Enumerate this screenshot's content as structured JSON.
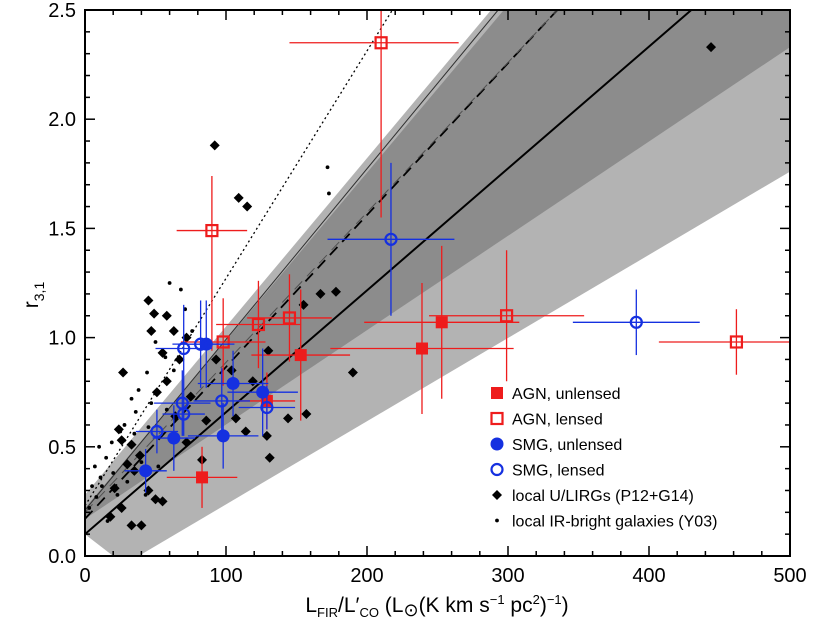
{
  "chart_data": {
    "type": "scatter",
    "title": "",
    "xlabel": {
      "main": "L",
      "sub1": "FIR",
      "mid": "/L′",
      "sub2": "CO",
      "tail1": " (L",
      "tail2": "(K km s",
      "sup1": "−1",
      "tail3": " pc",
      "sup2": "2",
      "tail4": ")",
      "sup3": "−1",
      "tail5": ")"
    },
    "ylabel": {
      "main": "r",
      "sub": "3,1"
    },
    "xlim": [
      0,
      500
    ],
    "ylim": [
      0,
      2.5
    ],
    "xticks": [
      0,
      100,
      200,
      300,
      400,
      500
    ],
    "yticks": [
      0.0,
      0.5,
      1.0,
      1.5,
      2.0,
      2.5
    ],
    "xtick_labels": [
      "0",
      "100",
      "200",
      "300",
      "400",
      "500"
    ],
    "ytick_labels": [
      "0.0",
      "0.5",
      "1.0",
      "1.5",
      "2.0",
      "2.5"
    ],
    "colors": {
      "agn": "#ee1c1c",
      "smg": "#1530e0",
      "local": "#000000",
      "band_light": "#b3b3b3",
      "band_dark": "#8c8c8c"
    },
    "bands": [
      {
        "name": "outer-band",
        "color": "#b3b3b3",
        "polygon": [
          [
            20,
            0
          ],
          [
            38,
            0
          ],
          [
            500,
            1.76
          ],
          [
            500,
            2.5
          ],
          [
            288,
            2.5
          ],
          [
            0,
            0.28
          ],
          [
            0,
            0.1
          ]
        ]
      },
      {
        "name": "inner-band",
        "color": "#8c8c8c",
        "polygon": [
          [
            0,
            0.17
          ],
          [
            0,
            0.22
          ],
          [
            297,
            2.5
          ],
          [
            500,
            2.5
          ],
          [
            500,
            2.33
          ]
        ]
      }
    ],
    "lines": [
      {
        "name": "fit-solid",
        "style": "solid",
        "width": 2,
        "color": "#000000",
        "points": [
          [
            0,
            0.1
          ],
          [
            430,
            2.5
          ]
        ]
      },
      {
        "name": "fit-dashed",
        "style": "dashed",
        "width": 1.8,
        "color": "#000000",
        "points": [
          [
            0,
            0.17
          ],
          [
            335,
            2.5
          ]
        ]
      },
      {
        "name": "fit-thin-solid",
        "style": "solid",
        "width": 1,
        "color": "#303030",
        "points": [
          [
            0,
            0.21
          ],
          [
            293,
            2.5
          ]
        ]
      },
      {
        "name": "fit-thin-dashed",
        "style": "dashed",
        "width": 1,
        "color": "#505050",
        "points": [
          [
            0,
            0.2
          ],
          [
            335,
            2.5
          ]
        ]
      },
      {
        "name": "fit-dotted",
        "style": "dotted",
        "width": 1.3,
        "color": "#000000",
        "points": [
          [
            0,
            0.23
          ],
          [
            218,
            2.5
          ]
        ]
      }
    ],
    "series": [
      {
        "name": "AGN, unlensed",
        "marker": "square-filled",
        "color": "#ee1c1c",
        "points": [
          {
            "x": 83,
            "y": 0.36,
            "xerr": [
              25,
              25
            ],
            "yerr": [
              0.14,
              0.14
            ]
          },
          {
            "x": 129,
            "y": 0.71,
            "xerr": [
              20,
              20
            ],
            "yerr": [
              0.13,
              0.13
            ]
          },
          {
            "x": 153,
            "y": 0.92,
            "xerr": [
              35,
              35
            ],
            "yerr": [
              0.3,
              0.3
            ]
          },
          {
            "x": 239,
            "y": 0.95,
            "xerr": [
              65,
              65
            ],
            "yerr": [
              0.3,
              0.3
            ]
          },
          {
            "x": 253,
            "y": 1.07,
            "xerr": [
              55,
              55
            ],
            "yerr": [
              0.35,
              0.35
            ]
          }
        ]
      },
      {
        "name": "AGN, lensed",
        "marker": "square-open",
        "color": "#ee1c1c",
        "points": [
          {
            "x": 210,
            "y": 2.35,
            "xerr": [
              65,
              55
            ],
            "yerr": [
              0.8,
              0.15
            ]
          },
          {
            "x": 90,
            "y": 1.49,
            "xerr": [
              25,
              25
            ],
            "yerr": [
              0.55,
              0.25
            ]
          },
          {
            "x": 98,
            "y": 0.98,
            "xerr": [
              30,
              30
            ],
            "yerr": [
              0.2,
              0.2
            ]
          },
          {
            "x": 123,
            "y": 1.06,
            "xerr": [
              30,
              30
            ],
            "yerr": [
              0.2,
              0.2
            ]
          },
          {
            "x": 145,
            "y": 1.09,
            "xerr": [
              30,
              30
            ],
            "yerr": [
              0.2,
              0.2
            ]
          },
          {
            "x": 299,
            "y": 1.1,
            "xerr": [
              55,
              55
            ],
            "yerr": [
              0.3,
              0.3
            ]
          },
          {
            "x": 462,
            "y": 0.98,
            "xerr": [
              55,
              55
            ],
            "yerr": [
              0.15,
              0.15
            ]
          }
        ]
      },
      {
        "name": "SMG, unlensed",
        "marker": "circle-filled",
        "color": "#1530e0",
        "points": [
          {
            "x": 43,
            "y": 0.39,
            "xerr": [
              15,
              15
            ],
            "yerr": [
              0.1,
              0.1
            ]
          },
          {
            "x": 63,
            "y": 0.54,
            "xerr": [
              15,
              15
            ],
            "yerr": [
              0.15,
              0.15
            ]
          },
          {
            "x": 98,
            "y": 0.55,
            "xerr": [
              25,
              25
            ],
            "yerr": [
              0.15,
              0.15
            ]
          },
          {
            "x": 105,
            "y": 0.79,
            "xerr": [
              25,
              25
            ],
            "yerr": [
              0.15,
              0.15
            ]
          },
          {
            "x": 126,
            "y": 0.75,
            "xerr": [
              25,
              25
            ],
            "yerr": [
              0.2,
              0.2
            ]
          },
          {
            "x": 86,
            "y": 0.97,
            "xerr": [
              20,
              20
            ],
            "yerr": [
              0.2,
              0.2
            ]
          }
        ]
      },
      {
        "name": "SMG, lensed",
        "marker": "circle-open",
        "color": "#1530e0",
        "points": [
          {
            "x": 217,
            "y": 1.45,
            "xerr": [
              45,
              45
            ],
            "yerr": [
              0.35,
              0.35
            ]
          },
          {
            "x": 391,
            "y": 1.07,
            "xerr": [
              45,
              45
            ],
            "yerr": [
              0.15,
              0.15
            ]
          },
          {
            "x": 70,
            "y": 0.95,
            "xerr": [
              20,
              20
            ],
            "yerr": [
              0.2,
              0.2
            ]
          },
          {
            "x": 82,
            "y": 0.97,
            "xerr": [
              20,
              20
            ],
            "yerr": [
              0.2,
              0.2
            ]
          },
          {
            "x": 69,
            "y": 0.7,
            "xerr": [
              20,
              20
            ],
            "yerr": [
              0.15,
              0.15
            ]
          },
          {
            "x": 97,
            "y": 0.71,
            "xerr": [
              20,
              20
            ],
            "yerr": [
              0.15,
              0.15
            ]
          },
          {
            "x": 129,
            "y": 0.68,
            "xerr": [
              20,
              20
            ],
            "yerr": [
              0.1,
              0.1
            ]
          },
          {
            "x": 51,
            "y": 0.57,
            "xerr": [
              15,
              15
            ],
            "yerr": [
              0.1,
              0.1
            ]
          },
          {
            "x": 70,
            "y": 0.65,
            "xerr": [
              15,
              15
            ],
            "yerr": [
              0.1,
              0.1
            ]
          }
        ]
      },
      {
        "name": "local U/LIRGs (P12+G14)",
        "marker": "diamond-filled",
        "color": "#000000",
        "points": [
          {
            "x": 444,
            "y": 2.33
          },
          {
            "x": 92,
            "y": 1.88
          },
          {
            "x": 109,
            "y": 1.64
          },
          {
            "x": 115,
            "y": 1.6
          },
          {
            "x": 45,
            "y": 1.17
          },
          {
            "x": 49,
            "y": 1.11
          },
          {
            "x": 58,
            "y": 1.1
          },
          {
            "x": 47,
            "y": 1.03
          },
          {
            "x": 63,
            "y": 1.03
          },
          {
            "x": 72,
            "y": 1.0
          },
          {
            "x": 55,
            "y": 0.93
          },
          {
            "x": 67,
            "y": 0.9
          },
          {
            "x": 27,
            "y": 0.84
          },
          {
            "x": 58,
            "y": 0.8
          },
          {
            "x": 104,
            "y": 0.85
          },
          {
            "x": 130,
            "y": 0.94
          },
          {
            "x": 155,
            "y": 1.15
          },
          {
            "x": 167,
            "y": 1.2
          },
          {
            "x": 178,
            "y": 1.21
          },
          {
            "x": 190,
            "y": 0.84
          },
          {
            "x": 51,
            "y": 0.75
          },
          {
            "x": 75,
            "y": 0.73
          },
          {
            "x": 119,
            "y": 0.8
          },
          {
            "x": 157,
            "y": 0.65
          },
          {
            "x": 129,
            "y": 0.55
          },
          {
            "x": 131,
            "y": 0.45
          },
          {
            "x": 24,
            "y": 0.58
          },
          {
            "x": 26,
            "y": 0.53
          },
          {
            "x": 33,
            "y": 0.51
          },
          {
            "x": 39,
            "y": 0.46
          },
          {
            "x": 30,
            "y": 0.42
          },
          {
            "x": 35,
            "y": 0.39
          },
          {
            "x": 45,
            "y": 0.3
          },
          {
            "x": 50,
            "y": 0.26
          },
          {
            "x": 55,
            "y": 0.25
          },
          {
            "x": 21,
            "y": 0.31
          },
          {
            "x": 26,
            "y": 0.22
          },
          {
            "x": 18,
            "y": 0.18
          },
          {
            "x": 40,
            "y": 0.14
          },
          {
            "x": 33,
            "y": 0.14
          },
          {
            "x": 64,
            "y": 0.64
          },
          {
            "x": 86,
            "y": 0.62
          },
          {
            "x": 93,
            "y": 0.9
          },
          {
            "x": 114,
            "y": 0.57
          },
          {
            "x": 72,
            "y": 0.52
          },
          {
            "x": 144,
            "y": 0.63
          },
          {
            "x": 107,
            "y": 0.63
          },
          {
            "x": 83,
            "y": 0.44
          }
        ]
      },
      {
        "name": "local IR-bright galaxies (Y03)",
        "marker": "dot",
        "color": "#000000",
        "points": [
          {
            "x": 173,
            "y": 1.66
          },
          {
            "x": 172,
            "y": 1.78
          },
          {
            "x": 60,
            "y": 1.25
          },
          {
            "x": 68,
            "y": 1.22
          },
          {
            "x": 71,
            "y": 1.13
          },
          {
            "x": 76,
            "y": 1.03
          },
          {
            "x": 50,
            "y": 0.98
          },
          {
            "x": 57,
            "y": 0.91
          },
          {
            "x": 63,
            "y": 0.85
          },
          {
            "x": 44,
            "y": 0.84
          },
          {
            "x": 38,
            "y": 0.76
          },
          {
            "x": 33,
            "y": 0.72
          },
          {
            "x": 47,
            "y": 0.7
          },
          {
            "x": 36,
            "y": 0.66
          },
          {
            "x": 25,
            "y": 0.57
          },
          {
            "x": 19,
            "y": 0.52
          },
          {
            "x": 10,
            "y": 0.5
          },
          {
            "x": 15,
            "y": 0.45
          },
          {
            "x": 7,
            "y": 0.41
          },
          {
            "x": 20,
            "y": 0.38
          },
          {
            "x": 5,
            "y": 0.32
          },
          {
            "x": 8,
            "y": 0.27
          },
          {
            "x": 3,
            "y": 0.22
          },
          {
            "x": 12,
            "y": 0.32
          },
          {
            "x": 30,
            "y": 0.34
          },
          {
            "x": 40,
            "y": 0.43
          },
          {
            "x": 35,
            "y": 0.56
          },
          {
            "x": 28,
            "y": 0.6
          },
          {
            "x": 45,
            "y": 0.59
          },
          {
            "x": 52,
            "y": 0.41
          },
          {
            "x": 58,
            "y": 0.67
          },
          {
            "x": 23,
            "y": 0.28
          },
          {
            "x": 16,
            "y": 0.16
          },
          {
            "x": 11,
            "y": 0.36
          },
          {
            "x": 43,
            "y": 0.28
          }
        ]
      }
    ],
    "legend_position": "bottom-right"
  }
}
